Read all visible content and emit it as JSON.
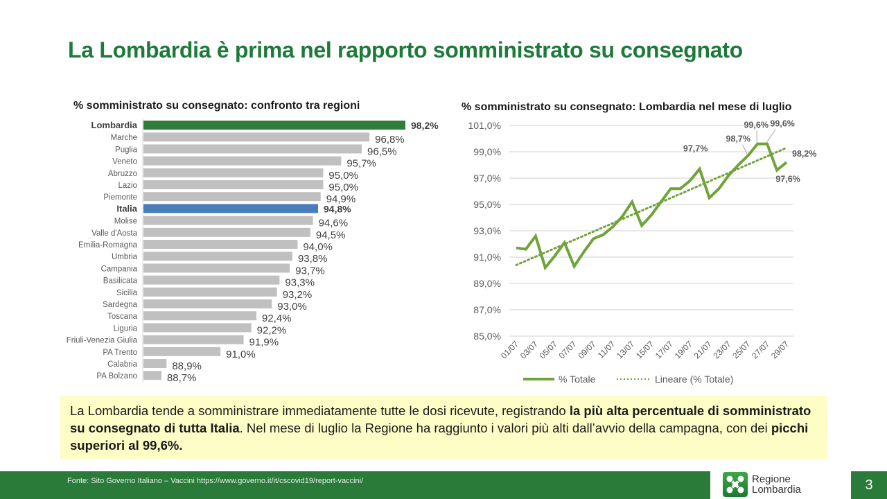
{
  "slide": {
    "title": "La Lombardia è prima nel rapporto somministrato su consegnato",
    "page_number": "3",
    "source": "Fonte: Sito Governo Italiano – Vaccini https://www.governo.it/it/cscovid19/report-vaccini/",
    "logo": {
      "icon": "regione-lombardia-logo-icon",
      "line1": "Regione",
      "line2": "Lombardia"
    },
    "note": {
      "part1": "La Lombardia tende a somministrare immediatamente tutte le dosi ricevute, registrando ",
      "bold1": "la più alta percentuale di somministrato su consegnato di tutta Italia",
      "part2": ". Nel mese di luglio la Regione ha raggiunto i valori più alti dall’avvio della campagna, con dei ",
      "bold2": "picchi superiori al 99,6%."
    },
    "colors": {
      "brand_green": "#2a7a3a",
      "title_green": "#1e7a3a",
      "highlight_bar": "#2e7d3a",
      "italia_bar": "#4a7ebb",
      "default_bar": "#c0c0c0",
      "line": "#70a33a",
      "note_bg": "#fdfdc6"
    }
  },
  "chart_data": [
    {
      "type": "bar",
      "orientation": "horizontal",
      "title": "% somministrato su consegnato: confronto tra regioni",
      "categories": [
        "Lombardia",
        "Marche",
        "Puglia",
        "Veneto",
        "Abruzzo",
        "Lazio",
        "Piemonte",
        "Italia",
        "Molise",
        "Valle d'Aosta",
        "Emilia-Romagna",
        "Umbria",
        "Campania",
        "Basilicata",
        "Sicilia",
        "Sardegna",
        "Toscana",
        "Liguria",
        "Friuli-Venezia Giulia",
        "PA Trento",
        "Calabria",
        "PA Bolzano"
      ],
      "values": [
        98.2,
        96.8,
        96.5,
        95.7,
        95.0,
        95.0,
        94.9,
        94.8,
        94.6,
        94.5,
        94.0,
        93.8,
        93.7,
        93.3,
        93.2,
        93.0,
        92.4,
        92.2,
        91.9,
        91.0,
        88.9,
        88.7
      ],
      "labels": [
        "98,2%",
        "96,8%",
        "96,5%",
        "95,7%",
        "95,0%",
        "95,0%",
        "94,9%",
        "94,8%",
        "94,6%",
        "94,5%",
        "94,0%",
        "93,8%",
        "93,7%",
        "93,3%",
        "93,2%",
        "93,0%",
        "92,4%",
        "92,2%",
        "91,9%",
        "91,0%",
        "88,9%",
        "88,7%"
      ],
      "highlight": {
        "Lombardia": "green",
        "Italia": "blue"
      },
      "xlim": [
        88.0,
        98.2
      ]
    },
    {
      "type": "line",
      "title": "% somministrato su consegnato: Lombardia nel mese di luglio",
      "x": [
        "01/07",
        "02/07",
        "03/07",
        "04/07",
        "05/07",
        "06/07",
        "07/07",
        "08/07",
        "09/07",
        "10/07",
        "11/07",
        "12/07",
        "13/07",
        "14/07",
        "15/07",
        "16/07",
        "17/07",
        "18/07",
        "19/07",
        "20/07",
        "21/07",
        "22/07",
        "23/07",
        "24/07",
        "25/07",
        "26/07",
        "27/07",
        "28/07",
        "29/07"
      ],
      "x_tick_labels": [
        "01/07",
        "03/07",
        "05/07",
        "07/07",
        "09/07",
        "11/07",
        "13/07",
        "15/07",
        "17/07",
        "19/07",
        "21/07",
        "23/07",
        "25/07",
        "27/07",
        "29/07"
      ],
      "series": [
        {
          "name": "% Totale",
          "style": "solid",
          "values": [
            91.7,
            91.6,
            92.6,
            90.2,
            91.1,
            92.1,
            90.3,
            91.4,
            92.4,
            92.7,
            93.3,
            94.1,
            95.2,
            93.4,
            94.2,
            95.2,
            96.2,
            96.2,
            96.8,
            97.7,
            95.5,
            96.2,
            97.2,
            98.0,
            98.7,
            99.6,
            99.6,
            97.6,
            98.2
          ]
        },
        {
          "name": "Lineare (% Totale)",
          "style": "dotted",
          "trend": "linear",
          "values": [
            90.4,
            99.3
          ]
        }
      ],
      "annotations": [
        {
          "x": "20/07",
          "label": "97,7%"
        },
        {
          "x": "25/07",
          "label": "98,7%"
        },
        {
          "x": "26/07",
          "label": "99,6%"
        },
        {
          "x": "27/07",
          "label": "99,6%"
        },
        {
          "x": "28/07",
          "label": "97,6%"
        },
        {
          "x": "29/07",
          "label": "98,2%"
        }
      ],
      "y_tick_labels": [
        "85,0%",
        "87,0%",
        "89,0%",
        "91,0%",
        "93,0%",
        "95,0%",
        "97,0%",
        "99,0%",
        "101,0%"
      ],
      "ylim": [
        85.0,
        101.0
      ],
      "grid": true,
      "legend": "bottom"
    }
  ]
}
